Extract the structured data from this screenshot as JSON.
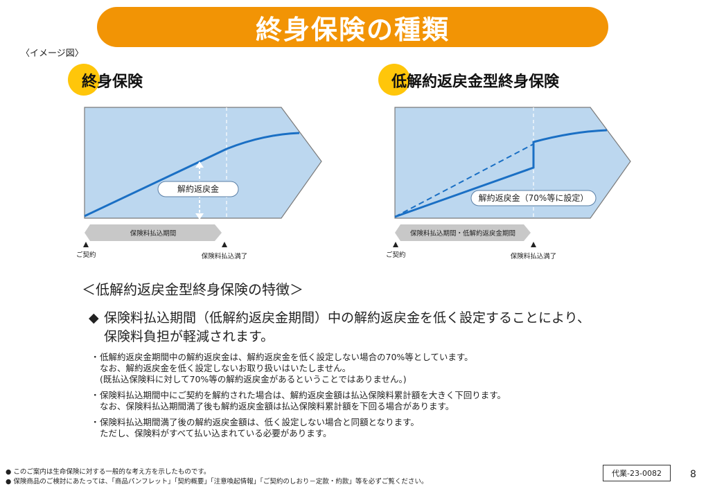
{
  "title": "終身保険の種類",
  "image_note": "〈イメージ図〉",
  "left_section": {
    "title": "終身保険",
    "value_label": "解約返戻金",
    "period_label": "保険料払込期間",
    "start_label": "ご契約",
    "end_label": "保険料払込満了"
  },
  "right_section": {
    "title": "低解約返戻金型終身保険",
    "value_label": "解約返戻金（70%等に設定）",
    "period_label": "保険料払込期間・低解約返戻金期間",
    "start_label": "ご契約",
    "end_label": "保険料払込満了"
  },
  "features": {
    "heading": "＜低解約返戻金型終身保険の特徴＞",
    "main_line1": "保険料払込期間（低解約返戻金期間）中の解約返戻金を低く設定することにより、",
    "main_line2": "保険料負担が軽減されます。",
    "notes": [
      {
        "line1": "低解約返戻金期間中の解約返戻金は、解約返戻金を低く設定しない場合の70%等としています。",
        "line2": "なお、解約返戻金を低く設定しないお取り扱いはいたしません。",
        "line3": "(既払込保険料に対して70%等の解約返戻金があるということではありません。)"
      },
      {
        "line1": "保険料払込期間中にご契約を解約された場合は、解約返戻金額は払込保険料累計額を大きく下回ります。",
        "line2": "なお、保険料払込期間満了後も解約返戻金額は払込保険料累計額を下回る場合があります。"
      },
      {
        "line1": "保険料払込期間満了後の解約返戻金額は、低く設定しない場合と同額となります。",
        "line2": "ただし、保険料がすべて払い込まれている必要があります。"
      }
    ]
  },
  "footer": {
    "line1": "このご案内は生命保険に対する一般的な考え方を示したものです。",
    "line2": "保険商品のご検討にあたっては、「商品パンフレット」「契約概要」「注意喚起情報」「ご契約のしおり－定款・約款」等を必ずご覧ください。",
    "code": "代業-23-0082",
    "page": "8"
  },
  "colors": {
    "accent_orange": "#f29405",
    "circle_yellow": "#ffc60a",
    "diagram_fill": "#bcd7ef",
    "curve_blue": "#1a6fc4",
    "period_arrow": "#c8c8c8"
  }
}
